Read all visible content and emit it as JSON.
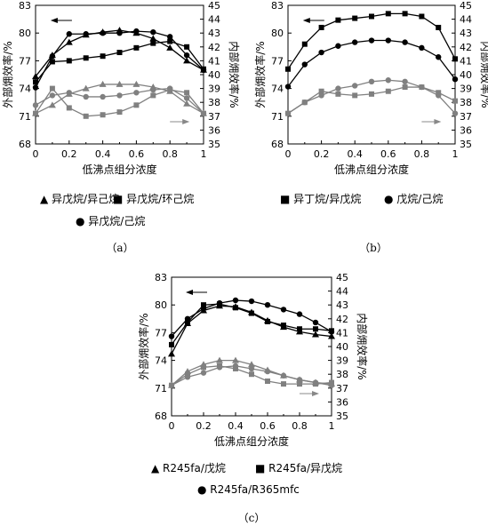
{
  "chart_data": [
    {
      "type": "line",
      "panel_label": "（a）",
      "xlabel": "低沸点组分浓度",
      "ylabel_left": "外部㶲效率/%",
      "ylabel_right": "内部㶲效率/%",
      "x_ticks": [
        "0",
        "0.2",
        "0.4",
        "0.6",
        "0.8",
        "1"
      ],
      "y_left_ticks": [
        "68",
        "71",
        "74",
        "77",
        "80",
        "83"
      ],
      "y_right_ticks": [
        "35",
        "36",
        "37",
        "38",
        "39",
        "40",
        "41",
        "42",
        "43",
        "44",
        "45"
      ],
      "x": [
        0,
        0.1,
        0.2,
        0.3,
        0.4,
        0.5,
        0.6,
        0.7,
        0.8,
        0.9,
        1.0
      ],
      "ylim_left": [
        68,
        83
      ],
      "ylim_right": [
        35,
        45
      ],
      "series": [
        {
          "name": "异戊烷/异己烷",
          "marker": "triangle",
          "axis": "left",
          "color": "#000000",
          "values": [
            75.3,
            77.6,
            79.0,
            79.8,
            80.1,
            80.3,
            80.0,
            79.4,
            78.4,
            77.0,
            76.0
          ]
        },
        {
          "name": "异戊烷/环己烷",
          "marker": "square",
          "axis": "left",
          "color": "#000000",
          "values": [
            74.7,
            76.9,
            77.0,
            77.3,
            77.5,
            77.9,
            78.4,
            78.9,
            79.1,
            78.5,
            76.1
          ]
        },
        {
          "name": "异戊烷/己烷",
          "marker": "circle",
          "axis": "left",
          "color": "#000000",
          "values": [
            74.1,
            77.5,
            79.9,
            79.9,
            80.0,
            80.0,
            80.2,
            80.1,
            79.6,
            77.6,
            76.0
          ]
        },
        {
          "name": "异戊烷/异己烷",
          "marker": "triangle",
          "axis": "right",
          "color": "#808080",
          "values": [
            37.2,
            37.8,
            38.6,
            39.0,
            39.3,
            39.3,
            39.3,
            39.1,
            38.8,
            37.9,
            37.2
          ]
        },
        {
          "name": "异戊烷/环己烷",
          "marker": "square",
          "axis": "right",
          "color": "#808080",
          "values": [
            37.2,
            39.0,
            37.6,
            37.0,
            37.1,
            37.3,
            37.8,
            38.5,
            38.9,
            38.7,
            37.2
          ]
        },
        {
          "name": "异戊烷/己烷",
          "marker": "circle",
          "axis": "right",
          "color": "#808080",
          "values": [
            37.8,
            38.5,
            38.7,
            38.4,
            38.4,
            38.5,
            38.7,
            38.9,
            39.0,
            38.3,
            37.2
          ]
        }
      ],
      "legend": [
        "▲ 异戊烷/异己烷",
        "■ 异戊烷/环己烷",
        "● 异戊烷/己烷"
      ]
    },
    {
      "type": "line",
      "panel_label": "（b）",
      "xlabel": "低沸点组分浓度",
      "ylabel_left": "外部㶲效率/%",
      "ylabel_right": "内部㶲效率/%",
      "x_ticks": [
        "0",
        "0.2",
        "0.4",
        "0.6",
        "0.8",
        "1"
      ],
      "y_left_ticks": [
        "68",
        "71",
        "74",
        "77",
        "80",
        "83"
      ],
      "y_right_ticks": [
        "35",
        "36",
        "37",
        "38",
        "39",
        "40",
        "41",
        "42",
        "43",
        "44",
        "45"
      ],
      "x": [
        0,
        0.1,
        0.2,
        0.3,
        0.4,
        0.5,
        0.6,
        0.7,
        0.8,
        0.9,
        1.0
      ],
      "ylim_left": [
        68,
        83
      ],
      "ylim_right": [
        35,
        45
      ],
      "series": [
        {
          "name": "异丁烷/异戊烷",
          "marker": "square",
          "axis": "left",
          "color": "#000000",
          "values": [
            76.1,
            78.8,
            80.6,
            81.4,
            81.6,
            81.8,
            82.1,
            82.1,
            81.8,
            80.6,
            77.2
          ]
        },
        {
          "name": "戊烷/己烷",
          "marker": "circle",
          "axis": "left",
          "color": "#000000",
          "values": [
            74.2,
            76.6,
            77.9,
            78.6,
            79.0,
            79.2,
            79.2,
            79.0,
            78.4,
            77.4,
            75.0
          ]
        },
        {
          "name": "异丁烷/异戊烷",
          "marker": "square",
          "axis": "right",
          "color": "#808080",
          "values": [
            37.2,
            38.0,
            38.8,
            38.6,
            38.5,
            38.6,
            38.8,
            39.1,
            39.1,
            38.7,
            38.1
          ]
        },
        {
          "name": "戊烷/己烷",
          "marker": "circle",
          "axis": "right",
          "color": "#808080",
          "values": [
            37.2,
            38.0,
            38.5,
            39.0,
            39.2,
            39.5,
            39.6,
            39.5,
            39.1,
            38.5,
            37.2
          ]
        }
      ],
      "legend": [
        "■ 异丁烷/异戊烷",
        "● 戊烷/己烷"
      ]
    },
    {
      "type": "line",
      "panel_label": "（c）",
      "xlabel": "低沸点组分浓度",
      "ylabel_left": "外部㶲效率/%",
      "ylabel_right": "内部㶲效率/%",
      "x_ticks": [
        "0",
        "0.2",
        "0.4",
        "0.6",
        "0.8",
        "1"
      ],
      "y_left_ticks": [
        "68",
        "71",
        "74",
        "77",
        "80",
        "83"
      ],
      "y_right_ticks": [
        "35",
        "36",
        "37",
        "38",
        "39",
        "40",
        "41",
        "42",
        "43",
        "44",
        "45"
      ],
      "x": [
        0,
        0.1,
        0.2,
        0.3,
        0.4,
        0.5,
        0.6,
        0.7,
        0.8,
        0.9,
        1.0
      ],
      "ylim_left": [
        68,
        83
      ],
      "ylim_right": [
        35,
        45
      ],
      "series": [
        {
          "name": "R245fa/戊烷",
          "marker": "triangle",
          "axis": "left",
          "color": "#000000",
          "values": [
            74.7,
            78.0,
            79.4,
            79.9,
            79.8,
            79.2,
            78.3,
            77.6,
            77.1,
            76.8,
            76.6
          ]
        },
        {
          "name": "R245fa/异戊烷",
          "marker": "square",
          "axis": "left",
          "color": "#000000",
          "values": [
            75.7,
            78.1,
            80.0,
            80.1,
            79.7,
            79.1,
            78.2,
            77.8,
            77.4,
            77.4,
            77.2
          ]
        },
        {
          "name": "R245fa/R365mfc",
          "marker": "circle",
          "axis": "left",
          "color": "#000000",
          "values": [
            76.6,
            78.5,
            79.6,
            80.2,
            80.5,
            80.4,
            80.0,
            79.5,
            79.0,
            78.1,
            77.1
          ]
        },
        {
          "name": "R245fa/戊烷",
          "marker": "triangle",
          "axis": "right",
          "color": "#808080",
          "values": [
            37.2,
            38.2,
            38.7,
            39.0,
            39.0,
            38.7,
            38.3,
            37.9,
            37.6,
            37.4,
            37.3
          ]
        },
        {
          "name": "R245fa/异戊烷",
          "marker": "square",
          "axis": "right",
          "color": "#808080",
          "values": [
            37.2,
            38.0,
            38.5,
            38.6,
            38.4,
            38.0,
            37.5,
            37.3,
            37.3,
            37.3,
            37.4
          ]
        },
        {
          "name": "R245fa/R365mfc",
          "marker": "circle",
          "axis": "right",
          "color": "#808080",
          "values": [
            37.2,
            37.8,
            38.1,
            38.5,
            38.6,
            38.4,
            38.2,
            37.9,
            37.6,
            37.4,
            37.2
          ]
        }
      ],
      "legend": [
        "▲ R245fa/戊烷",
        "■ R245fa/异戊烷",
        "● R245fa/R365mfc"
      ]
    }
  ]
}
